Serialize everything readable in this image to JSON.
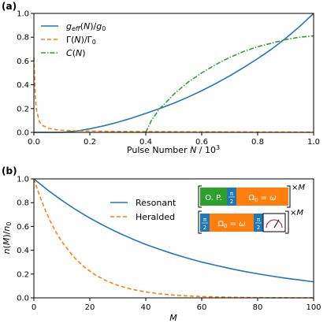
{
  "chart_data": [
    {
      "panel_label": "(a)",
      "type": "line",
      "xlabel": "Pulse Number N / 10³",
      "ylabel": "",
      "xlim": [
        0,
        1
      ],
      "ylim": [
        0,
        1
      ],
      "xticks": [
        "0.0",
        "0.2",
        "0.4",
        "0.6",
        "0.8",
        "1.0"
      ],
      "yticks": [
        "0.0",
        "0.2",
        "0.4",
        "0.6",
        "0.8",
        "1.0"
      ],
      "grid": false,
      "legend_position": "top-left",
      "series": [
        {
          "name": "g_eff(N)/g_0",
          "color": "#1f77b4",
          "style": "solid",
          "x": [
            0.0,
            0.05,
            0.1,
            0.15,
            0.2,
            0.25,
            0.3,
            0.35,
            0.4,
            0.45,
            0.5,
            0.55,
            0.6,
            0.65,
            0.7,
            0.75,
            0.8,
            0.85,
            0.9,
            0.95,
            1.0
          ],
          "y": [
            0.0,
            0.0,
            0.0,
            0.01,
            0.03,
            0.055,
            0.085,
            0.12,
            0.16,
            0.2,
            0.245,
            0.295,
            0.35,
            0.41,
            0.475,
            0.545,
            0.62,
            0.7,
            0.79,
            0.89,
            1.0
          ]
        },
        {
          "name": "Γ(N)/Γ_0",
          "color": "#ff7f0e",
          "style": "dashed",
          "x": [
            0.0,
            0.005,
            0.01,
            0.02,
            0.03,
            0.05,
            0.08,
            0.1,
            0.15,
            0.2,
            0.3,
            0.4,
            0.5,
            0.6,
            0.7,
            0.8,
            0.9,
            1.0
          ],
          "y": [
            0.63,
            0.3,
            0.18,
            0.09,
            0.06,
            0.035,
            0.022,
            0.018,
            0.013,
            0.011,
            0.008,
            0.007,
            0.006,
            0.005,
            0.004,
            0.003,
            0.003,
            0.002
          ]
        },
        {
          "name": "C(N)",
          "color": "#2ca02c",
          "style": "dashdot",
          "x": [
            0.4,
            0.42,
            0.45,
            0.48,
            0.5,
            0.55,
            0.6,
            0.65,
            0.7,
            0.75,
            0.8,
            0.85,
            0.9,
            0.95,
            1.0
          ],
          "y": [
            0.0,
            0.1,
            0.2,
            0.27,
            0.32,
            0.42,
            0.5,
            0.57,
            0.63,
            0.68,
            0.72,
            0.75,
            0.78,
            0.8,
            0.81
          ]
        }
      ]
    },
    {
      "panel_label": "(b)",
      "type": "line",
      "xlabel": "M",
      "ylabel": "n(M)/n_0",
      "xlim": [
        0,
        100
      ],
      "ylim": [
        0,
        1
      ],
      "xticks": [
        "0",
        "20",
        "40",
        "60",
        "80",
        "100"
      ],
      "yticks": [
        "0.0",
        "0.2",
        "0.4",
        "0.6",
        "0.8",
        "1.0"
      ],
      "grid": false,
      "legend_position": "upper-center",
      "series": [
        {
          "name": "Resonant",
          "color": "#1f77b4",
          "style": "solid",
          "x": [
            0,
            5,
            10,
            15,
            20,
            25,
            30,
            35,
            40,
            45,
            50,
            55,
            60,
            65,
            70,
            75,
            80,
            85,
            90,
            95,
            100
          ],
          "y": [
            1.0,
            0.905,
            0.819,
            0.741,
            0.67,
            0.607,
            0.549,
            0.497,
            0.449,
            0.407,
            0.368,
            0.333,
            0.301,
            0.273,
            0.247,
            0.223,
            0.202,
            0.183,
            0.165,
            0.15,
            0.135
          ]
        },
        {
          "name": "Heralded",
          "color": "#ff7f0e",
          "style": "dashed",
          "x": [
            0,
            2,
            4,
            6,
            8,
            10,
            14,
            18,
            22,
            26,
            30,
            35,
            40,
            45,
            50,
            55,
            60,
            70,
            80,
            90,
            100
          ],
          "y": [
            1.0,
            0.861,
            0.741,
            0.638,
            0.549,
            0.472,
            0.35,
            0.259,
            0.192,
            0.142,
            0.105,
            0.072,
            0.049,
            0.034,
            0.023,
            0.016,
            0.011,
            0.005,
            0.002,
            0.001,
            0.0
          ]
        }
      ],
      "inset": {
        "row1": {
          "block1_label": "O. P.",
          "block2_label": "π/2",
          "block3_label": "Ω₀ = ω",
          "multiplier": "×M"
        },
        "row2": {
          "block1_label": "π/2",
          "block2_label": "Ω₀ = ω",
          "block3_label": "π/2",
          "block4_icon": "meter-icon",
          "multiplier": "×M"
        },
        "colors": {
          "green": "#2ca02c",
          "blue": "#1f77b4",
          "orange": "#ff7f0e"
        }
      }
    }
  ]
}
